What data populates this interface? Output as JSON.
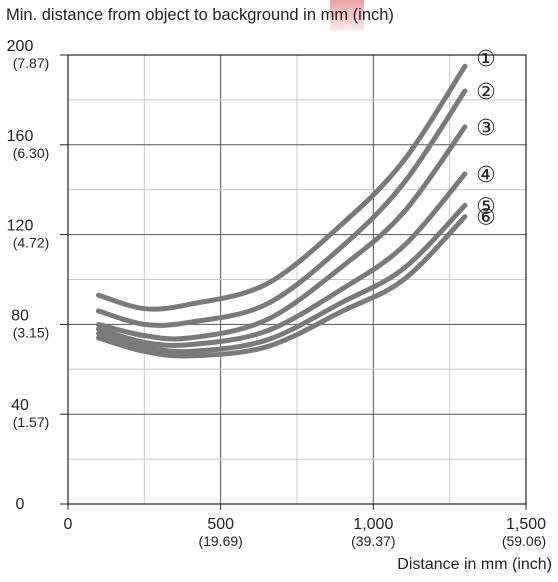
{
  "chart_data": {
    "type": "line",
    "title": "Min. distance from object to background in mm (inch)",
    "xlabel": "Distance in mm (inch)",
    "ylabel": "",
    "xlim": [
      0,
      1500
    ],
    "ylim": [
      0,
      200
    ],
    "grid": true,
    "x_ticks": [
      {
        "value": 0,
        "label": "0",
        "sub": ""
      },
      {
        "value": 500,
        "label": "500",
        "sub": "(19.69)"
      },
      {
        "value": 1000,
        "label": "1,000",
        "sub": "(39.37)"
      },
      {
        "value": 1500,
        "label": "1,500",
        "sub": "(59.06)"
      }
    ],
    "y_ticks": [
      {
        "value": 0,
        "label": "0",
        "sub": ""
      },
      {
        "value": 40,
        "label": "40",
        "sub": "(1.57)"
      },
      {
        "value": 80,
        "label": "80",
        "sub": "(3.15)"
      },
      {
        "value": 120,
        "label": "120",
        "sub": "(4.72)"
      },
      {
        "value": 160,
        "label": "160",
        "sub": "(6.30)"
      },
      {
        "value": 200,
        "label": "200",
        "sub": "(7.87)"
      }
    ],
    "series": [
      {
        "name": "①",
        "x": [
          100,
          250,
          400,
          650,
          900,
          1100,
          1300
        ],
        "y": [
          93,
          87,
          89,
          98,
          125,
          153,
          195
        ]
      },
      {
        "name": "②",
        "x": [
          100,
          250,
          400,
          650,
          900,
          1100,
          1300
        ],
        "y": [
          86,
          80,
          81,
          89,
          115,
          143,
          184
        ]
      },
      {
        "name": "③",
        "x": [
          100,
          250,
          400,
          650,
          900,
          1100,
          1300
        ],
        "y": [
          80,
          75,
          74,
          82,
          106,
          130,
          168
        ]
      },
      {
        "name": "④",
        "x": [
          100,
          250,
          400,
          650,
          900,
          1100,
          1300
        ],
        "y": [
          78,
          72,
          71,
          77,
          96,
          115,
          147
        ]
      },
      {
        "name": "⑤",
        "x": [
          100,
          250,
          400,
          650,
          900,
          1100,
          1300
        ],
        "y": [
          76,
          70,
          68,
          73,
          90,
          105,
          133
        ]
      },
      {
        "name": "⑥",
        "x": [
          100,
          250,
          400,
          650,
          900,
          1100,
          1300
        ],
        "y": [
          74,
          68,
          66,
          70,
          86,
          100,
          128
        ]
      }
    ]
  },
  "colors": {
    "curve": "#7a7a7a",
    "grid": "#c8c8c8",
    "axis": "#222222",
    "text": "#222222"
  }
}
